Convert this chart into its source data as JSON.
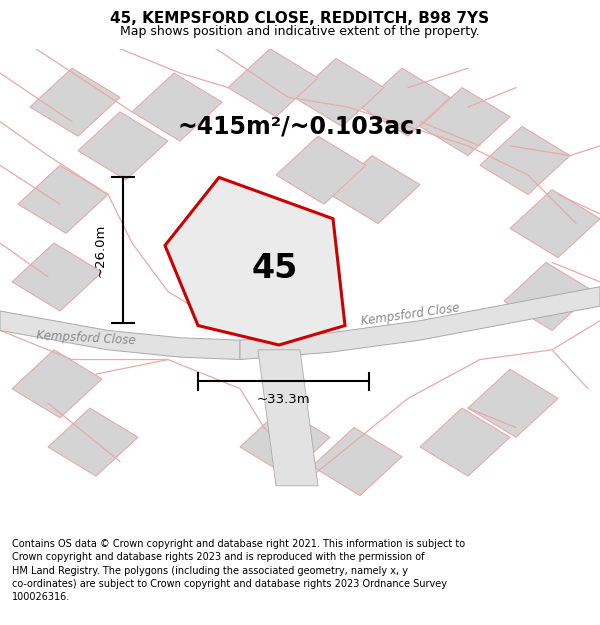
{
  "title_line1": "45, KEMPSFORD CLOSE, REDDITCH, B98 7YS",
  "title_line2": "Map shows position and indicative extent of the property.",
  "area_text": "~415m²/~0.103ac.",
  "number_label": "45",
  "dim_vertical": "~26.0m",
  "dim_horizontal": "~33.3m",
  "road_label_left": "Kempsford Close",
  "road_label_right": "Kempsford Close",
  "footer_text": "Contains OS data © Crown copyright and database right 2021. This information is subject to Crown copyright and database rights 2023 and is reproduced with the permission of HM Land Registry. The polygons (including the associated geometry, namely x, y co-ordinates) are subject to Crown copyright and database rights 2023 Ordnance Survey 100026316.",
  "bg_color": "#ffffff",
  "map_bg": "#f0f0f0",
  "plot_fill_color": "#ebebeb",
  "plot_outline_color": "#cc0000",
  "building_color": "#d4d4d4",
  "road_fill_color": "#e2e2e2",
  "pink_line_color": "#e8aaaa",
  "gray_outline_color": "#aaaaaa",
  "road_text_color": "#888888",
  "fig_width": 6.0,
  "fig_height": 6.25
}
